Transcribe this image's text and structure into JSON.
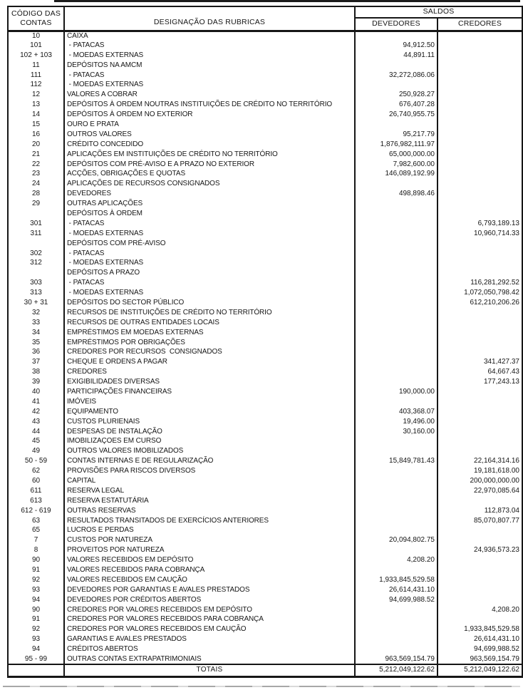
{
  "header": {
    "code_label_line1": "CÓDIGO DAS",
    "code_label_line2": "CONTAS",
    "designation_label": "DESIGNAÇÃO DAS RUBRICAS",
    "saldos_label": "SALDOS",
    "devedores_label": "DEVEDORES",
    "credores_label": "CREDORES"
  },
  "rows": [
    [
      "10",
      "CAIXA",
      "",
      ""
    ],
    [
      "101",
      " - PATACAS",
      "94,912.50",
      ""
    ],
    [
      "102 + 103",
      " - MOEDAS EXTERNAS",
      "44,891.11",
      ""
    ],
    [
      "11",
      "DEPÓSITOS NA AMCM",
      "",
      ""
    ],
    [
      "111",
      " - PATACAS",
      "32,272,086.06",
      ""
    ],
    [
      "112",
      " - MOEDAS EXTERNAS",
      "",
      ""
    ],
    [
      "12",
      "VALORES A COBRAR",
      "250,928.27",
      ""
    ],
    [
      "13",
      "DEPÓSITOS À ORDEM NOUTRAS INSTITUIÇÕES DE CRÉDITO NO TERRITÓRIO",
      "676,407.28",
      ""
    ],
    [
      "14",
      "DEPÓSITOS À ORDEM NO EXTERIOR",
      "26,740,955.75",
      ""
    ],
    [
      "15",
      "OURO E PRATA",
      "",
      ""
    ],
    [
      "16",
      "OUTROS VALORES",
      "95,217.79",
      ""
    ],
    [
      "20",
      "CRÉDITO CONCEDIDO",
      "1,876,982,111.97",
      ""
    ],
    [
      "21",
      "APLICAÇÕES EM INSTITUIÇÕES DE CRÉDITO NO TERRITÓRIO",
      "65,000,000.00",
      ""
    ],
    [
      "22",
      "DEPÓSITOS COM PRÉ-AVISO E A PRAZO NO EXTERIOR",
      "7,982,600.00",
      ""
    ],
    [
      "23",
      "ACÇÕES, OBRIGAÇÕES E QUOTAS",
      "146,089,192.99",
      ""
    ],
    [
      "24",
      "APLICAÇÕES DE RECURSOS CONSIGNADOS",
      "",
      ""
    ],
    [
      "28",
      "DEVEDORES",
      "498,898.46",
      ""
    ],
    [
      "29",
      "OUTRAS APLICAÇÕES",
      "",
      ""
    ],
    [
      "",
      "DEPÓSITOS À ORDEM",
      "",
      ""
    ],
    [
      "301",
      " - PATACAS",
      "",
      "6,793,189.13"
    ],
    [
      "311",
      " - MOEDAS EXTERNAS",
      "",
      "10,960,714.33"
    ],
    [
      "",
      "DEPÓSITOS COM PRÉ-AVISO",
      "",
      ""
    ],
    [
      "302",
      " - PATACAS",
      "",
      ""
    ],
    [
      "312",
      " - MOEDAS EXTERNAS",
      "",
      ""
    ],
    [
      "",
      "DEPÓSITOS A PRAZO",
      "",
      ""
    ],
    [
      "303",
      " - PATACAS",
      "",
      "116,281,292.52"
    ],
    [
      "313",
      " - MOEDAS EXTERNAS",
      "",
      "1,072,050,798.42"
    ],
    [
      "30 + 31",
      "DEPÓSITOS DO SECTOR PÚBLICO",
      "",
      "612,210,206.26"
    ],
    [
      "32",
      "RECURSOS DE INSTITUIÇÕES DE CRÉDITO NO TERRITÓRIO",
      "",
      ""
    ],
    [
      "33",
      "RECURSOS DE OUTRAS ENTIDADES LOCAIS",
      "",
      ""
    ],
    [
      "34",
      "EMPRÉSTIMOS EM MOEDAS EXTERNAS",
      "",
      ""
    ],
    [
      "35",
      "EMPRÉSTIMOS POR OBRIGAÇÕES",
      "",
      ""
    ],
    [
      "36",
      "CREDORES POR RECURSOS  CONSIGNADOS",
      "",
      ""
    ],
    [
      "37",
      "CHEQUE E ORDENS A PAGAR",
      "",
      "341,427.37"
    ],
    [
      "38",
      "CREDORES",
      "",
      "64,667.43"
    ],
    [
      "39",
      "EXIGIBILIDADES DIVERSAS",
      "",
      "177,243.13"
    ],
    [
      "40",
      "PARTICIPAÇÕES FINANCEIRAS",
      "190,000.00",
      ""
    ],
    [
      "41",
      "IMÓVEIS",
      "",
      ""
    ],
    [
      "42",
      "EQUIPAMENTO",
      "403,368.07",
      ""
    ],
    [
      "43",
      "CUSTOS PLURIENAIS",
      "19,496.00",
      ""
    ],
    [
      "44",
      "DESPESAS DE INSTALAÇÃO",
      "30,160.00",
      ""
    ],
    [
      "45",
      "IMOBILIZAÇÕES EM CURSO",
      "",
      ""
    ],
    [
      "49",
      "OUTROS VALORES IMOBILIZADOS",
      "",
      ""
    ],
    [
      "50 - 59",
      "CONTAS INTERNAS E DE REGULARIZAÇÃO",
      "15,849,781.43",
      "22,164,314.16"
    ],
    [
      "62",
      "PROVISÕES PARA RISCOS DIVERSOS",
      "",
      "19,181,618.00"
    ],
    [
      "60",
      "CAPITAL",
      "",
      "200,000,000.00"
    ],
    [
      "611",
      "RESERVA LEGAL",
      "",
      "22,970,085.64"
    ],
    [
      "613",
      "RESERVA ESTATUTÁRIA",
      "",
      ""
    ],
    [
      "612 - 619",
      "OUTRAS RESERVAS",
      "",
      "112,873.04"
    ],
    [
      "63",
      "RESULTADOS TRANSITADOS DE EXERCÍCIOS ANTERIORES",
      "",
      "85,070,807.77"
    ],
    [
      "65",
      "LUCROS E PERDAS",
      "",
      ""
    ],
    [
      "7",
      "CUSTOS POR NATUREZA",
      "20,094,802.75",
      ""
    ],
    [
      "8",
      "PROVEITOS POR NATUREZA",
      "",
      "24,936,573.23"
    ],
    [
      "90",
      "VALORES RECEBIDOS EM DEPÓSITO",
      "4,208.20",
      ""
    ],
    [
      "91",
      "VALORES RECEBIDOS PARA COBRANÇA",
      "",
      ""
    ],
    [
      "92",
      "VALORES RECEBIDOS EM CAUÇÃO",
      "1,933,845,529.58",
      ""
    ],
    [
      "93",
      "DEVEDORES POR GARANTIAS E AVALES PRESTADOS",
      "26,614,431.10",
      ""
    ],
    [
      "94",
      "DEVEDORES POR CRÉDITOS ABERTOS",
      "94,699,988.52",
      ""
    ],
    [
      "90",
      "CREDORES POR VALORES RECEBIDOS EM DEPÓSITO",
      "",
      "4,208.20"
    ],
    [
      "91",
      "CREDORES POR VALORES RECEBIDOS PARA COBRANÇA",
      "",
      ""
    ],
    [
      "92",
      "CREDORES POR VALORES RECEBIDOS EM CAUÇÃO",
      "",
      "1,933,845,529.58"
    ],
    [
      "93",
      "GARANTIAS E AVALES PRESTADOS",
      "",
      "26,614,431.10"
    ],
    [
      "94",
      "CRÉDITOS ABERTOS",
      "",
      "94,699,988.52"
    ],
    [
      "95 - 99",
      "OUTRAS CONTAS EXTRAPATRIMONIAIS",
      "963,569,154.79",
      "963,569,154.79"
    ]
  ],
  "footer": {
    "label": "TOTAIS",
    "devedores_total": "5,212,049,122.62",
    "credores_total": "5,212,049,122.62"
  },
  "colors": {
    "ink": "#161616",
    "paper": "#ffffff"
  }
}
